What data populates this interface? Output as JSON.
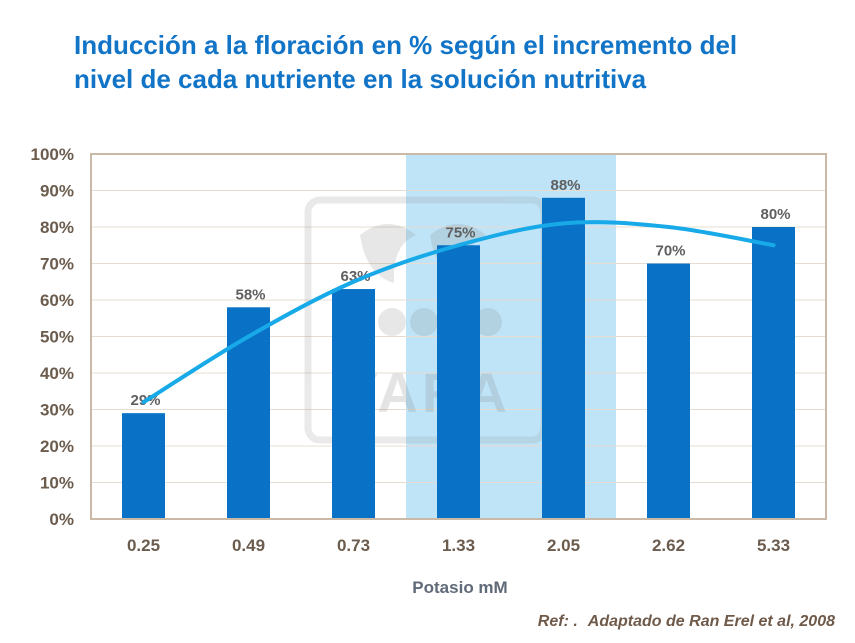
{
  "title_line1": "Inducción a la floración en % según el incremento del",
  "title_line2": "nivel de cada nutriente en la solución nutritiva",
  "xlabel": "Potasio mM",
  "reference": {
    "prefix": "Ref: .",
    "text": "Adaptado de  Ran Erel et al, 2008"
  },
  "watermark": "YARA",
  "colors": {
    "title": "#1174c7",
    "bar": "#0a72c6",
    "highlight": "#bfe4f8",
    "trendline": "#17a9e8",
    "axis_text": "#6b5c4e",
    "border": "#c9b9a6"
  },
  "chart_data": {
    "type": "bar",
    "categories": [
      "0.25",
      "0.49",
      "0.73",
      "1.33",
      "2.05",
      "2.62",
      "5.33"
    ],
    "values": [
      29,
      58,
      63,
      75,
      88,
      70,
      80
    ],
    "data_labels": [
      "29%",
      "58%",
      "63%",
      "75%",
      "88%",
      "70%",
      "80%"
    ],
    "ylim": [
      0,
      100
    ],
    "yticks": [
      "0%",
      "10%",
      "20%",
      "30%",
      "40%",
      "50%",
      "60%",
      "70%",
      "80%",
      "90%",
      "100%"
    ],
    "xlabel": "Potasio mM",
    "ylabel": "",
    "grid": "horizontal",
    "highlighted_categories": [
      "1.33",
      "2.05"
    ],
    "trendline": {
      "type": "polynomial",
      "points": [
        {
          "x": "0.25",
          "y": 32
        },
        {
          "x": "0.49",
          "y": 50
        },
        {
          "x": "0.73",
          "y": 65
        },
        {
          "x": "1.33",
          "y": 75
        },
        {
          "x": "2.05",
          "y": 81
        },
        {
          "x": "2.62",
          "y": 80
        },
        {
          "x": "5.33",
          "y": 75
        }
      ]
    }
  }
}
